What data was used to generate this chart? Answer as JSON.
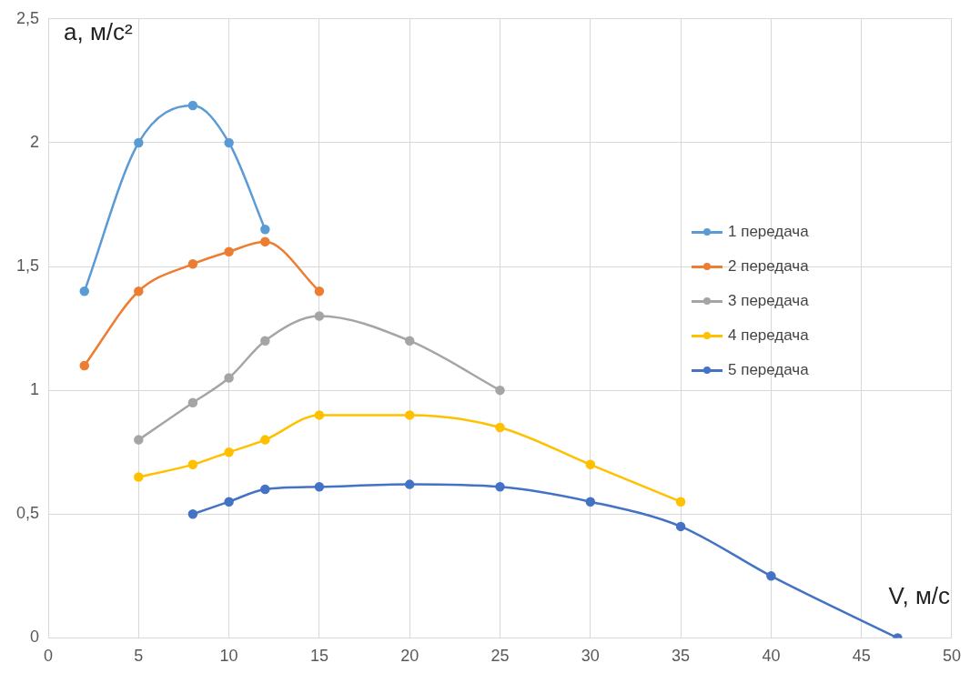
{
  "chart_data": {
    "type": "line",
    "xlabel": "V, м/с",
    "ylabel": "a, м/с²",
    "xlim": [
      0,
      50
    ],
    "xticks": [
      0,
      5,
      10,
      15,
      20,
      25,
      30,
      35,
      40,
      45,
      50
    ],
    "ylim": [
      0,
      2.5
    ],
    "yticks": [
      0,
      {
        "value": 0.5,
        "label": "0,5"
      },
      1,
      {
        "value": 1.5,
        "label": "1,5"
      },
      2,
      {
        "value": 2.5,
        "label": "2,5"
      }
    ],
    "grid": true,
    "legend": "right",
    "marker": "circle",
    "line_style": "solid",
    "series": [
      {
        "name": "1 передача",
        "color": "#5b9bd5",
        "x": [
          2,
          5,
          8,
          10,
          12
        ],
        "values": [
          1.4,
          2.0,
          2.15,
          2.0,
          1.65
        ]
      },
      {
        "name": "2 передача",
        "color": "#ed7d31",
        "x": [
          2,
          5,
          8,
          10,
          12,
          15
        ],
        "values": [
          1.1,
          1.4,
          1.51,
          1.56,
          1.6,
          1.4
        ]
      },
      {
        "name": "3 передача",
        "color": "#a5a5a5",
        "x": [
          5,
          8,
          10,
          12,
          15,
          20,
          25
        ],
        "values": [
          0.8,
          0.95,
          1.05,
          1.2,
          1.3,
          1.2,
          1.0
        ]
      },
      {
        "name": "4 передача",
        "color": "#ffc000",
        "x": [
          5,
          8,
          10,
          12,
          15,
          20,
          25,
          30,
          35
        ],
        "values": [
          0.65,
          0.7,
          0.75,
          0.8,
          0.9,
          0.9,
          0.85,
          0.7,
          0.55
        ]
      },
      {
        "name": "5 передача",
        "color": "#4472c4",
        "x": [
          8,
          10,
          12,
          15,
          20,
          25,
          30,
          35,
          40,
          47
        ],
        "values": [
          0.5,
          0.55,
          0.6,
          0.61,
          0.62,
          0.61,
          0.55,
          0.45,
          0.25,
          0
        ]
      }
    ]
  }
}
